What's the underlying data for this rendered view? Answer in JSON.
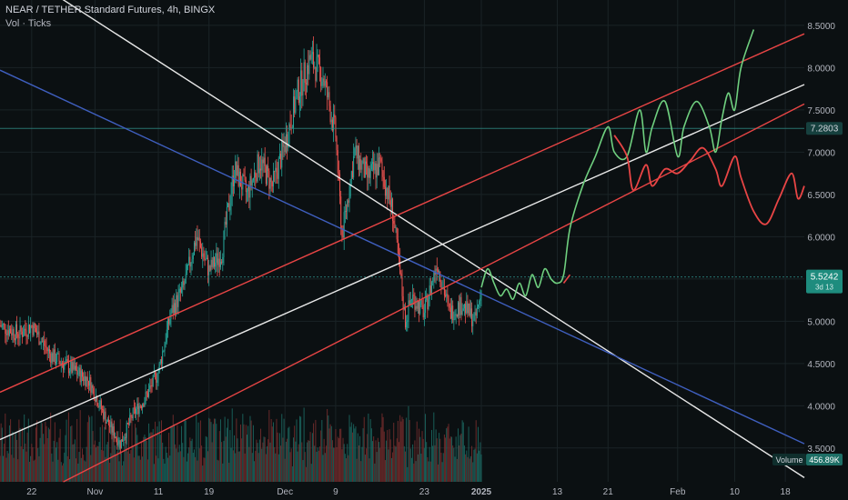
{
  "header": {
    "title": "NEAR / TETHER Standard Futures, 4h, BINGX",
    "subtitle": "Vol · Ticks"
  },
  "chart_data": {
    "type": "candlestick",
    "symbol": "NEAR / TETHER Standard Futures",
    "timeframe": "4h",
    "exchange": "BINGX",
    "y_axis": {
      "scale": "linear",
      "range": [
        3.1,
        8.8
      ],
      "ticks": [
        "8.5000",
        "8.0000",
        "7.5000",
        "7.0000",
        "6.5000",
        "6.0000",
        "5.5000",
        "5.0000",
        "4.5000",
        "4.0000",
        "3.5000"
      ]
    },
    "x_axis": {
      "range": [
        "2024-10-17",
        "2025-02-21"
      ],
      "ticks": [
        {
          "label": "22",
          "date": "2024-10-22"
        },
        {
          "label": "Nov",
          "date": "2024-11-01"
        },
        {
          "label": "11",
          "date": "2024-11-11"
        },
        {
          "label": "19",
          "date": "2024-11-19"
        },
        {
          "label": "Dec",
          "date": "2024-12-01"
        },
        {
          "label": "9",
          "date": "2024-12-09"
        },
        {
          "label": "23",
          "date": "2024-12-23"
        },
        {
          "label": "2025",
          "date": "2025-01-01"
        },
        {
          "label": "13",
          "date": "2025-01-13"
        },
        {
          "label": "21",
          "date": "2025-01-21"
        },
        {
          "label": "Feb",
          "date": "2025-02-01"
        },
        {
          "label": "10",
          "date": "2025-02-10"
        },
        {
          "label": "18",
          "date": "2025-02-18"
        }
      ]
    },
    "price_path": [
      {
        "d": "2024-10-17",
        "v": 4.95
      },
      {
        "d": "2024-10-20",
        "v": 4.85
      },
      {
        "d": "2024-10-22",
        "v": 4.95
      },
      {
        "d": "2024-10-25",
        "v": 4.6
      },
      {
        "d": "2024-10-28",
        "v": 4.45
      },
      {
        "d": "2024-10-31",
        "v": 4.3
      },
      {
        "d": "2024-11-03",
        "v": 3.8
      },
      {
        "d": "2024-11-05",
        "v": 3.55
      },
      {
        "d": "2024-11-07",
        "v": 3.9
      },
      {
        "d": "2024-11-09",
        "v": 4.1
      },
      {
        "d": "2024-11-11",
        "v": 4.4
      },
      {
        "d": "2024-11-13",
        "v": 5.1
      },
      {
        "d": "2024-11-15",
        "v": 5.4
      },
      {
        "d": "2024-11-17",
        "v": 6.0
      },
      {
        "d": "2024-11-19",
        "v": 5.6
      },
      {
        "d": "2024-11-21",
        "v": 5.8
      },
      {
        "d": "2024-11-23",
        "v": 6.8
      },
      {
        "d": "2024-11-25",
        "v": 6.5
      },
      {
        "d": "2024-11-27",
        "v": 6.9
      },
      {
        "d": "2024-11-29",
        "v": 6.6
      },
      {
        "d": "2024-12-01",
        "v": 7.1
      },
      {
        "d": "2024-12-03",
        "v": 7.7
      },
      {
        "d": "2024-12-05",
        "v": 8.1
      },
      {
        "d": "2024-12-07",
        "v": 7.9
      },
      {
        "d": "2024-12-09",
        "v": 7.2
      },
      {
        "d": "2024-12-10",
        "v": 6.0
      },
      {
        "d": "2024-12-12",
        "v": 7.0
      },
      {
        "d": "2024-12-14",
        "v": 6.7
      },
      {
        "d": "2024-12-16",
        "v": 6.85
      },
      {
        "d": "2024-12-18",
        "v": 6.3
      },
      {
        "d": "2024-12-20",
        "v": 5.0
      },
      {
        "d": "2024-12-21",
        "v": 5.3
      },
      {
        "d": "2024-12-23",
        "v": 5.1
      },
      {
        "d": "2024-12-25",
        "v": 5.7
      },
      {
        "d": "2024-12-27",
        "v": 5.1
      },
      {
        "d": "2024-12-29",
        "v": 5.2
      },
      {
        "d": "2024-12-31",
        "v": 5.0
      },
      {
        "d": "2025-01-01",
        "v": 5.35
      }
    ],
    "horizontal_lines": [
      {
        "name": "7.2803 level",
        "value": 7.2803
      },
      {
        "name": "last price",
        "value": 5.5242
      }
    ],
    "trendlines": [
      {
        "name": "white-descending",
        "color": "#e8e8e8",
        "p1": {
          "d": "2024-10-26",
          "v": 8.85
        },
        "p2": {
          "d": "2025-02-21",
          "v": 3.15
        }
      },
      {
        "name": "blue-descending",
        "color": "#3f5fbf",
        "p1": {
          "d": "2024-10-17",
          "v": 7.97
        },
        "p2": {
          "d": "2025-02-21",
          "v": 3.55
        }
      },
      {
        "name": "white-ascending",
        "color": "#e8e8e8",
        "p1": {
          "d": "2024-10-17",
          "v": 3.6
        },
        "p2": {
          "d": "2025-02-21",
          "v": 7.8
        }
      },
      {
        "name": "red-upper-channel",
        "color": "#e84545",
        "p1": {
          "d": "2024-10-17",
          "v": 4.16
        },
        "p2": {
          "d": "2025-02-21",
          "v": 8.4
        }
      },
      {
        "name": "red-lower-channel",
        "color": "#e84545",
        "p1": {
          "d": "2024-10-27",
          "v": 3.1
        },
        "p2": {
          "d": "2025-02-21",
          "v": 7.57
        }
      }
    ],
    "projection_bullish": {
      "color": "#6fcf7f",
      "points": [
        {
          "d": "2025-01-01",
          "v": 5.4
        },
        {
          "d": "2025-01-02",
          "v": 5.62
        },
        {
          "d": "2025-01-03",
          "v": 5.45
        },
        {
          "d": "2025-01-04",
          "v": 5.3
        },
        {
          "d": "2025-01-05",
          "v": 5.38
        },
        {
          "d": "2025-01-06",
          "v": 5.26
        },
        {
          "d": "2025-01-07",
          "v": 5.45
        },
        {
          "d": "2025-01-08",
          "v": 5.3
        },
        {
          "d": "2025-01-09",
          "v": 5.55
        },
        {
          "d": "2025-01-10",
          "v": 5.4
        },
        {
          "d": "2025-01-11",
          "v": 5.62
        },
        {
          "d": "2025-01-12",
          "v": 5.5
        },
        {
          "d": "2025-01-13",
          "v": 5.45
        },
        {
          "d": "2025-01-14",
          "v": 5.55
        },
        {
          "d": "2025-01-15",
          "v": 6.1
        },
        {
          "d": "2025-01-17",
          "v": 6.6
        },
        {
          "d": "2025-01-19",
          "v": 6.95
        },
        {
          "d": "2025-01-21",
          "v": 7.3
        },
        {
          "d": "2025-01-22",
          "v": 7.0
        },
        {
          "d": "2025-01-24",
          "v": 6.95
        },
        {
          "d": "2025-01-26",
          "v": 7.5
        },
        {
          "d": "2025-01-27",
          "v": 7.0
        },
        {
          "d": "2025-01-28",
          "v": 7.3
        },
        {
          "d": "2025-01-30",
          "v": 7.6
        },
        {
          "d": "2025-02-01",
          "v": 6.95
        },
        {
          "d": "2025-02-02",
          "v": 7.3
        },
        {
          "d": "2025-02-04",
          "v": 7.6
        },
        {
          "d": "2025-02-06",
          "v": 7.3
        },
        {
          "d": "2025-02-07",
          "v": 7.0
        },
        {
          "d": "2025-02-08",
          "v": 7.4
        },
        {
          "d": "2025-02-09",
          "v": 7.7
        },
        {
          "d": "2025-02-10",
          "v": 7.5
        },
        {
          "d": "2025-02-11",
          "v": 8.0
        },
        {
          "d": "2025-02-13",
          "v": 8.45
        }
      ]
    },
    "projection_bearish": {
      "color": "#e84545",
      "points": [
        {
          "d": "2025-01-22",
          "v": 7.2
        },
        {
          "d": "2025-01-24",
          "v": 6.95
        },
        {
          "d": "2025-01-25",
          "v": 6.55
        },
        {
          "d": "2025-01-27",
          "v": 6.85
        },
        {
          "d": "2025-01-28",
          "v": 6.6
        },
        {
          "d": "2025-01-30",
          "v": 6.8
        },
        {
          "d": "2025-02-01",
          "v": 6.75
        },
        {
          "d": "2025-02-03",
          "v": 6.9
        },
        {
          "d": "2025-02-05",
          "v": 7.05
        },
        {
          "d": "2025-02-07",
          "v": 6.8
        },
        {
          "d": "2025-02-08",
          "v": 6.6
        },
        {
          "d": "2025-02-10",
          "v": 6.95
        },
        {
          "d": "2025-02-11",
          "v": 6.7
        },
        {
          "d": "2025-02-13",
          "v": 6.3
        },
        {
          "d": "2025-02-15",
          "v": 6.15
        },
        {
          "d": "2025-02-17",
          "v": 6.45
        },
        {
          "d": "2025-02-19",
          "v": 6.75
        },
        {
          "d": "2025-02-20",
          "v": 6.45
        },
        {
          "d": "2025-02-21",
          "v": 6.6
        }
      ]
    },
    "small_mark": {
      "color": "#e84545",
      "p1": {
        "d": "2025-01-14",
        "v": 5.45
      },
      "p2": {
        "d": "2025-01-15",
        "v": 5.55
      }
    }
  },
  "price_labels": {
    "level_7280": "7.2803",
    "last_price": "5.5242",
    "last_price_countdown": "3d 13",
    "volume_label": "Volume",
    "volume_value": "456.89K"
  },
  "colors": {
    "background": "#0b1012",
    "grid": "#1a2326",
    "up": "#26a69a",
    "down": "#ef5350",
    "axis_text": "#b2b5be",
    "level_line": "#2e8b86",
    "last_price_label_bg": "#1e8c7e",
    "volume_up": "#1c6b64",
    "volume_down": "#7a2e2e"
  }
}
